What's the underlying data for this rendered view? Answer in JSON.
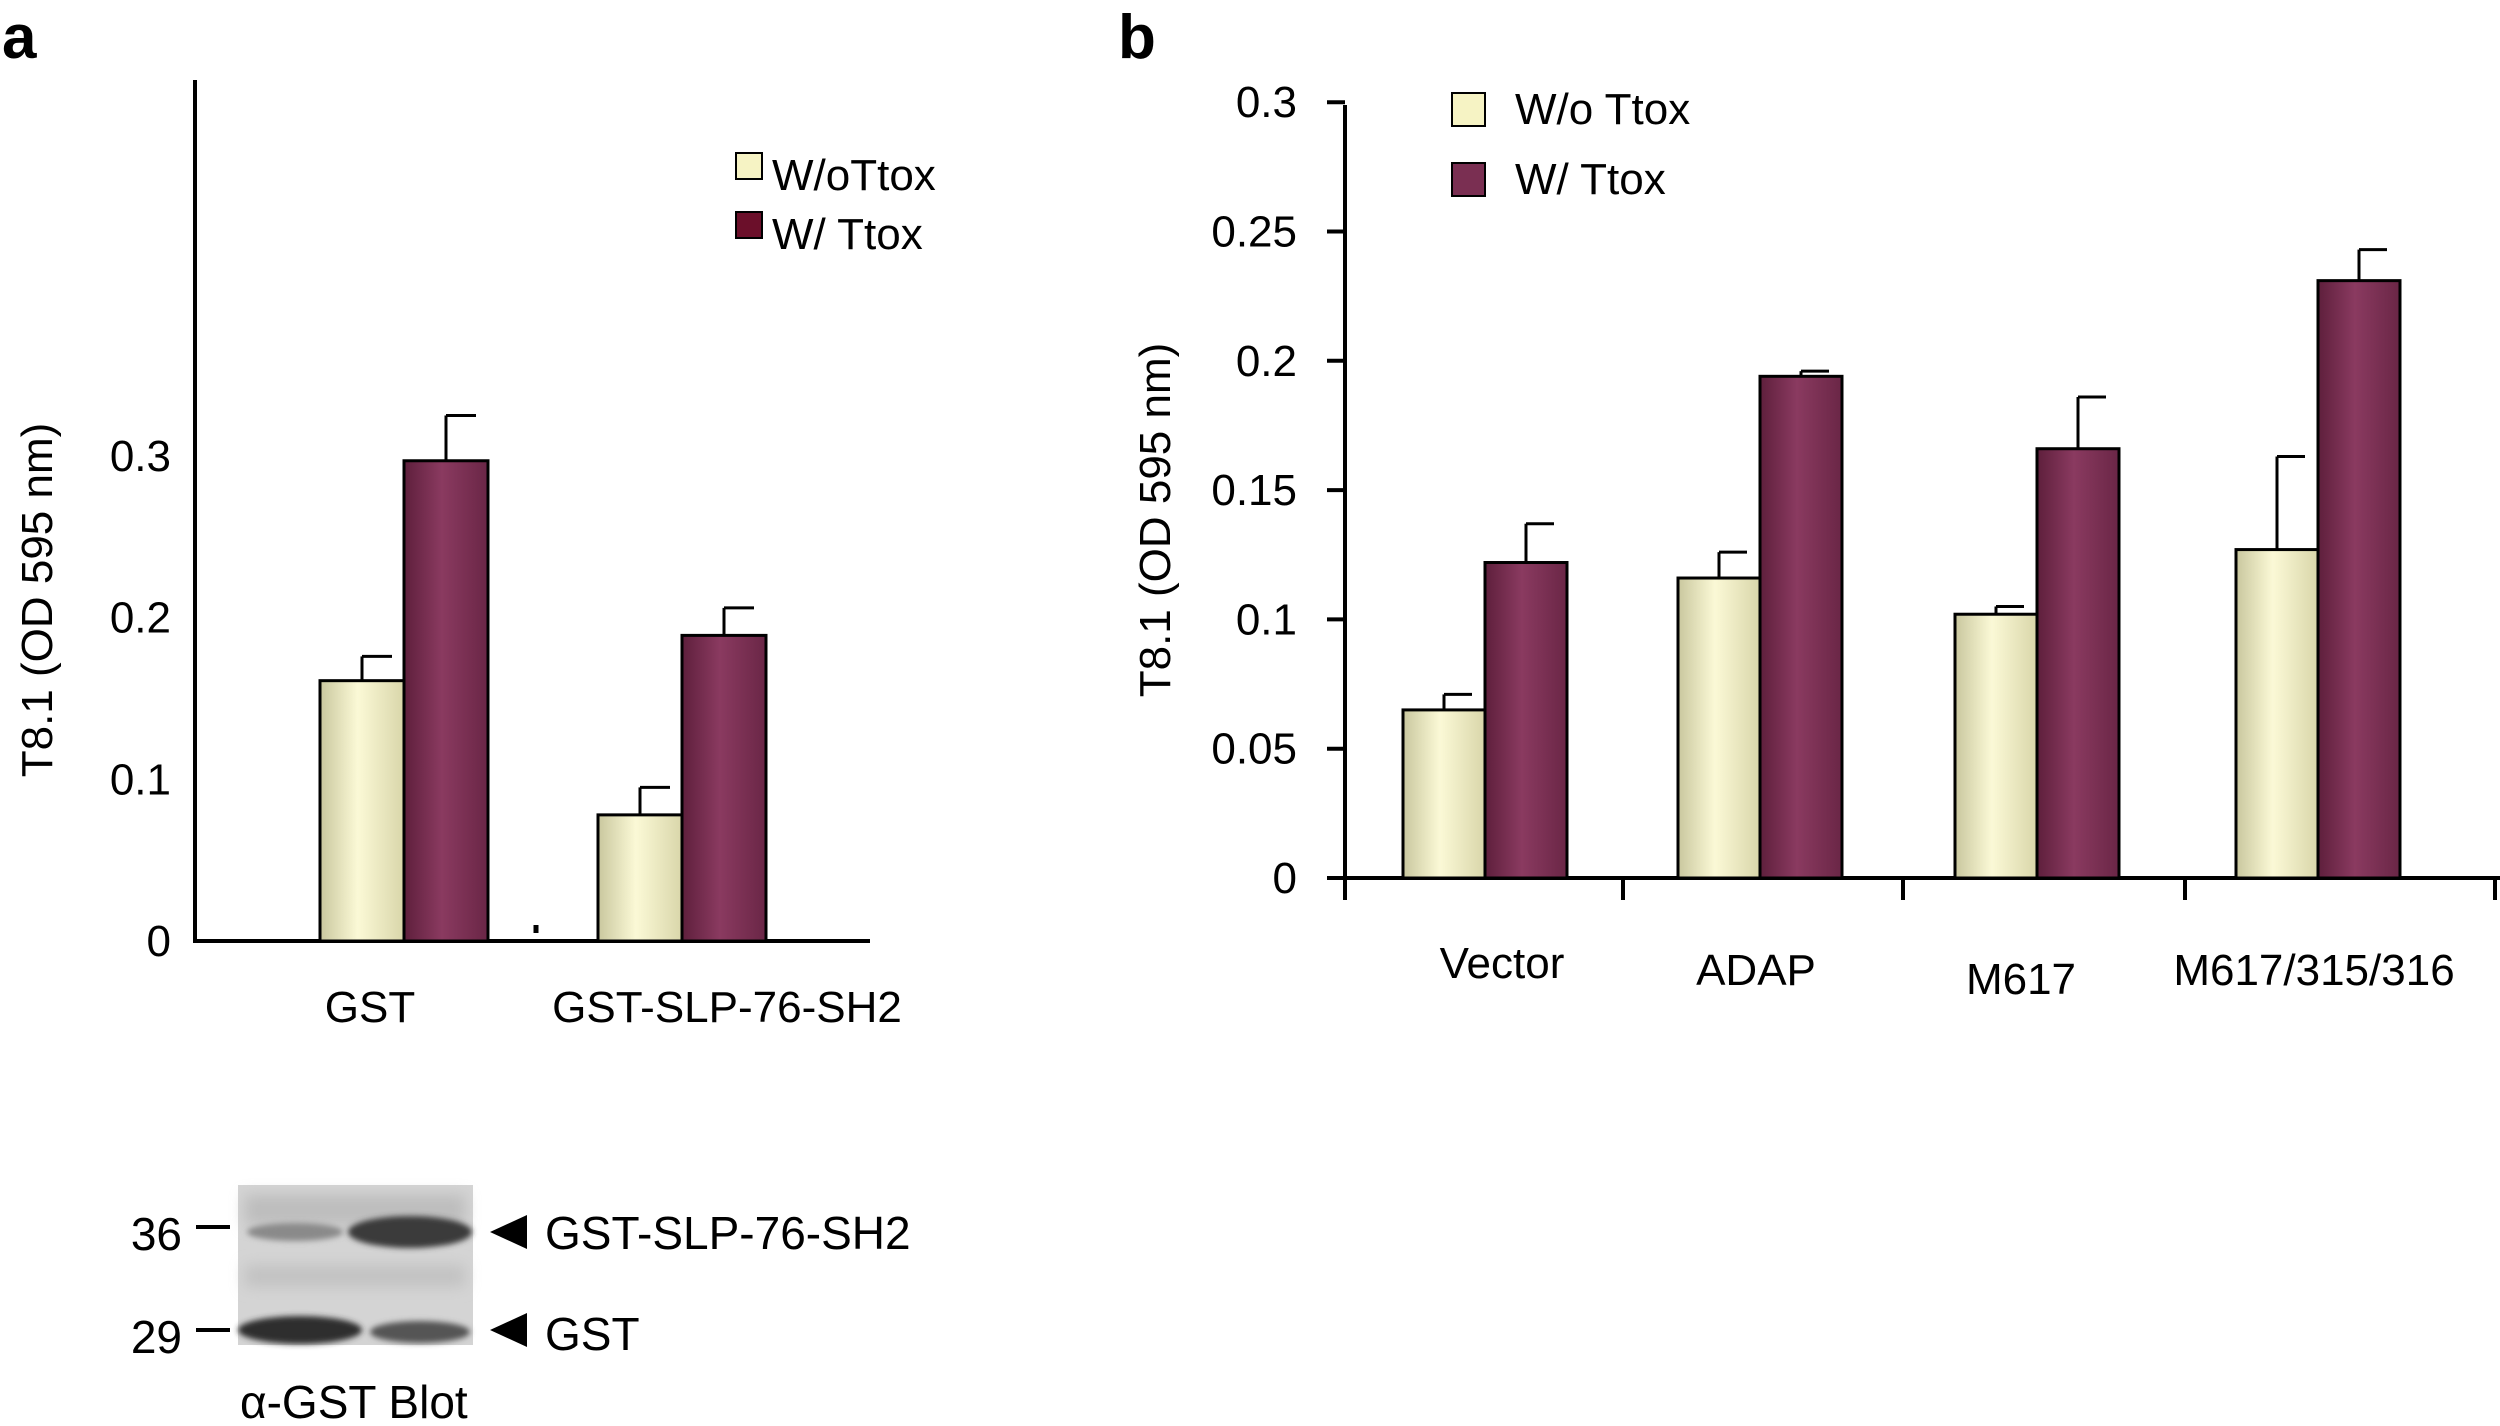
{
  "figure": {
    "panel_a_letter": "a",
    "panel_b_letter": "b",
    "colors": {
      "without": "#f6f3c4",
      "without_edge": "#bdb98a",
      "with": "#7a2f52",
      "with_legend_a": "#6b0f2a"
    }
  },
  "chart_data": [
    {
      "panel": "a",
      "type": "bar",
      "ylabel": "T8.1 (OD 595 nm)",
      "xlabel": "",
      "ylim": [
        0,
        0.35
      ],
      "yticks": [
        0,
        0.1,
        0.2,
        0.3
      ],
      "ytick_labels": [
        "0",
        "0.1",
        "0.2",
        "0.3"
      ],
      "grid": false,
      "legend_position": "top-right",
      "categories": [
        "GST",
        "GST-SLP-76-SH2"
      ],
      "series": [
        {
          "name": "W/oTtox",
          "values": [
            0.161,
            0.078
          ],
          "errors": [
            0.015,
            0.017
          ]
        },
        {
          "name": "W/ Ttox",
          "values": [
            0.297,
            0.189
          ],
          "errors": [
            0.028,
            0.017
          ]
        }
      ]
    },
    {
      "panel": "b",
      "type": "bar",
      "ylabel": "T8.1 (OD 595 nm)",
      "xlabel": "",
      "ylim": [
        0,
        0.3
      ],
      "yticks": [
        0,
        0.05,
        0.1,
        0.15,
        0.2,
        0.25,
        0.3
      ],
      "ytick_labels": [
        "0",
        "0.05",
        "0.1",
        "0.15",
        "0.2",
        "0.25",
        "0.3"
      ],
      "grid": false,
      "legend_position": "top-left",
      "categories": [
        "Vector",
        "ADAP",
        "M617",
        "M617/315/316"
      ],
      "series": [
        {
          "name": "W/o Ttox",
          "values": [
            0.065,
            0.116,
            0.102,
            0.127
          ],
          "errors": [
            0.006,
            0.01,
            0.003,
            0.036
          ]
        },
        {
          "name": "W/ Ttox",
          "values": [
            0.122,
            0.194,
            0.166,
            0.231
          ],
          "errors": [
            0.015,
            0.002,
            0.02,
            0.012
          ]
        }
      ]
    }
  ],
  "blot": {
    "markers": [
      "36",
      "29"
    ],
    "band_labels": [
      "GST-SLP-76-SH2",
      "GST"
    ],
    "caption": "α-GST Blot"
  }
}
